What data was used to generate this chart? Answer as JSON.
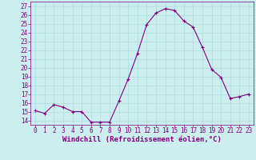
{
  "x": [
    0,
    1,
    2,
    3,
    4,
    5,
    6,
    7,
    8,
    9,
    10,
    11,
    12,
    13,
    14,
    15,
    16,
    17,
    18,
    19,
    20,
    21,
    22,
    23
  ],
  "y": [
    15.1,
    14.8,
    15.8,
    15.5,
    15.0,
    15.0,
    13.8,
    13.8,
    13.8,
    16.2,
    18.7,
    21.6,
    24.9,
    26.2,
    26.7,
    26.5,
    25.3,
    24.6,
    22.3,
    19.8,
    18.9,
    16.5,
    16.7,
    17.0
  ],
  "line_color": "#800080",
  "marker": "+",
  "marker_size": 3,
  "bg_color": "#cceeee",
  "grid_color": "#aadddd",
  "xlabel": "Windchill (Refroidissement éolien,°C)",
  "xlim": [
    -0.5,
    23.5
  ],
  "ylim": [
    13.5,
    27.5
  ],
  "yticks": [
    14,
    15,
    16,
    17,
    18,
    19,
    20,
    21,
    22,
    23,
    24,
    25,
    26,
    27
  ],
  "xticks": [
    0,
    1,
    2,
    3,
    4,
    5,
    6,
    7,
    8,
    9,
    10,
    11,
    12,
    13,
    14,
    15,
    16,
    17,
    18,
    19,
    20,
    21,
    22,
    23
  ],
  "tick_color": "#800080",
  "axis_color": "#800080",
  "label_color": "#800080",
  "label_fontsize": 6.5,
  "tick_fontsize": 5.5
}
